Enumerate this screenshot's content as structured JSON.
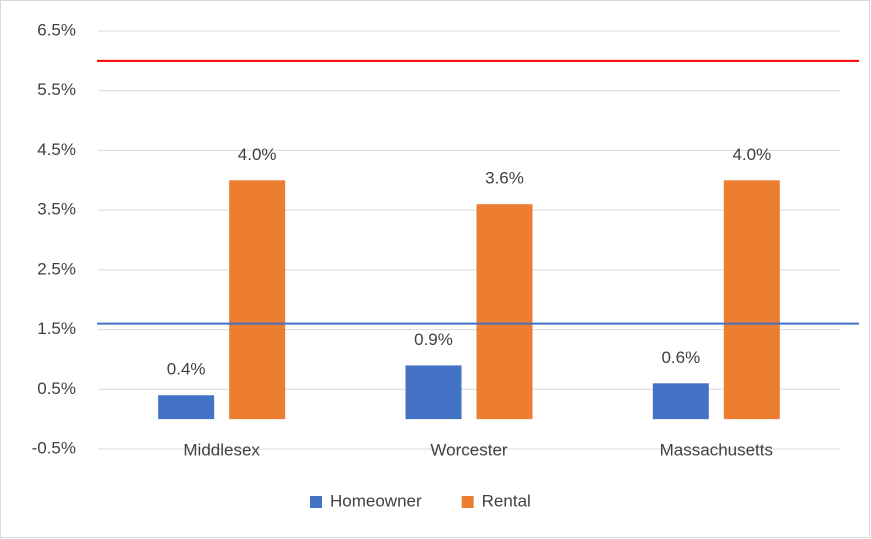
{
  "chart_data": {
    "type": "bar",
    "categories": [
      "Middlesex",
      "Worcester",
      "Massachusetts"
    ],
    "series": [
      {
        "name": "Homeowner",
        "color": "#4472c4",
        "values": [
          0.4,
          0.9,
          0.6
        ],
        "value_labels": [
          "0.4%",
          "0.9%",
          "0.6%"
        ]
      },
      {
        "name": "Rental",
        "color": "#ed7d31",
        "values": [
          4.0,
          3.6,
          4.0
        ],
        "value_labels": [
          "4.0%",
          "3.6%",
          "4.0%"
        ]
      }
    ],
    "ylim": [
      -0.5,
      6.5
    ],
    "yticks": [
      {
        "value": -0.5,
        "label": "-0.5%"
      },
      {
        "value": 0.5,
        "label": "0.5%"
      },
      {
        "value": 1.5,
        "label": "1.5%"
      },
      {
        "value": 2.5,
        "label": "2.5%"
      },
      {
        "value": 3.5,
        "label": "3.5%"
      },
      {
        "value": 4.5,
        "label": "4.5%"
      },
      {
        "value": 5.5,
        "label": "5.5%"
      },
      {
        "value": 6.5,
        "label": "6.5%"
      }
    ],
    "reference_lines": [
      {
        "value": 6.0,
        "color": "#ff0000"
      },
      {
        "value": 1.6,
        "color": "#4472c4"
      }
    ],
    "grid": true,
    "legend": "bottom"
  }
}
